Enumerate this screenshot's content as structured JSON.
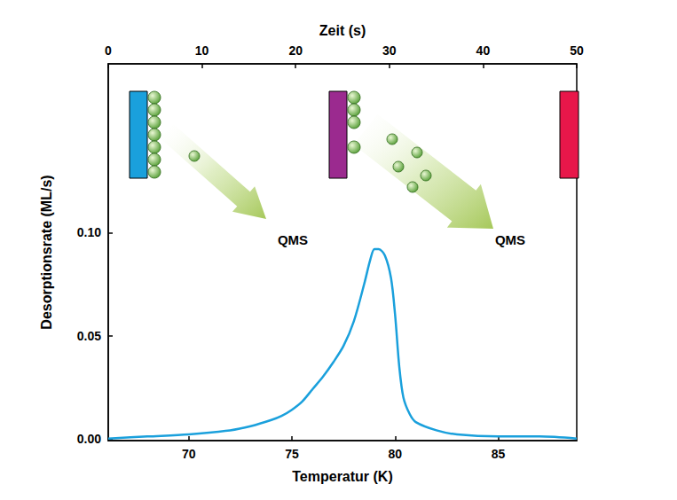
{
  "chart_data": {
    "type": "line",
    "xlabel": "Temperatur (K)",
    "ylabel": "Desorptionsrate (ML/s)",
    "x2label": "Zeit (s)",
    "xlim": [
      66.1,
      88.8
    ],
    "xticks": [
      70,
      75,
      80,
      85
    ],
    "x2lim": [
      0,
      50
    ],
    "x2ticks": [
      0,
      10,
      20,
      30,
      40,
      50
    ],
    "ylim": [
      -0.001,
      0.182
    ],
    "yticks": [
      {
        "value": 0,
        "label": "0.00"
      },
      {
        "value": 0.05,
        "label": "0.05"
      },
      {
        "value": 0.1,
        "label": "0.10"
      }
    ],
    "grid": false,
    "annotations": [
      {
        "text": "QMS"
      },
      {
        "text": "QMS"
      }
    ],
    "series": [
      {
        "name": "Desorptionsrate",
        "color": "#1aa0dc",
        "x": [
          66.1,
          68,
          70,
          72,
          73,
          74,
          74.5,
          75,
          75.5,
          76,
          76.5,
          77,
          77.5,
          78,
          78.5,
          78.8,
          79.0,
          79.2,
          79.5,
          79.8,
          80.0,
          80.2,
          80.4,
          80.7,
          81,
          82,
          83,
          85,
          87,
          88.8
        ],
        "values": [
          0.0,
          0.001,
          0.002,
          0.004,
          0.006,
          0.009,
          0.011,
          0.014,
          0.018,
          0.024,
          0.03,
          0.037,
          0.045,
          0.057,
          0.075,
          0.087,
          0.092,
          0.092,
          0.089,
          0.078,
          0.06,
          0.035,
          0.02,
          0.012,
          0.008,
          0.004,
          0.002,
          0.001,
          0.001,
          0.0
        ]
      }
    ]
  }
}
